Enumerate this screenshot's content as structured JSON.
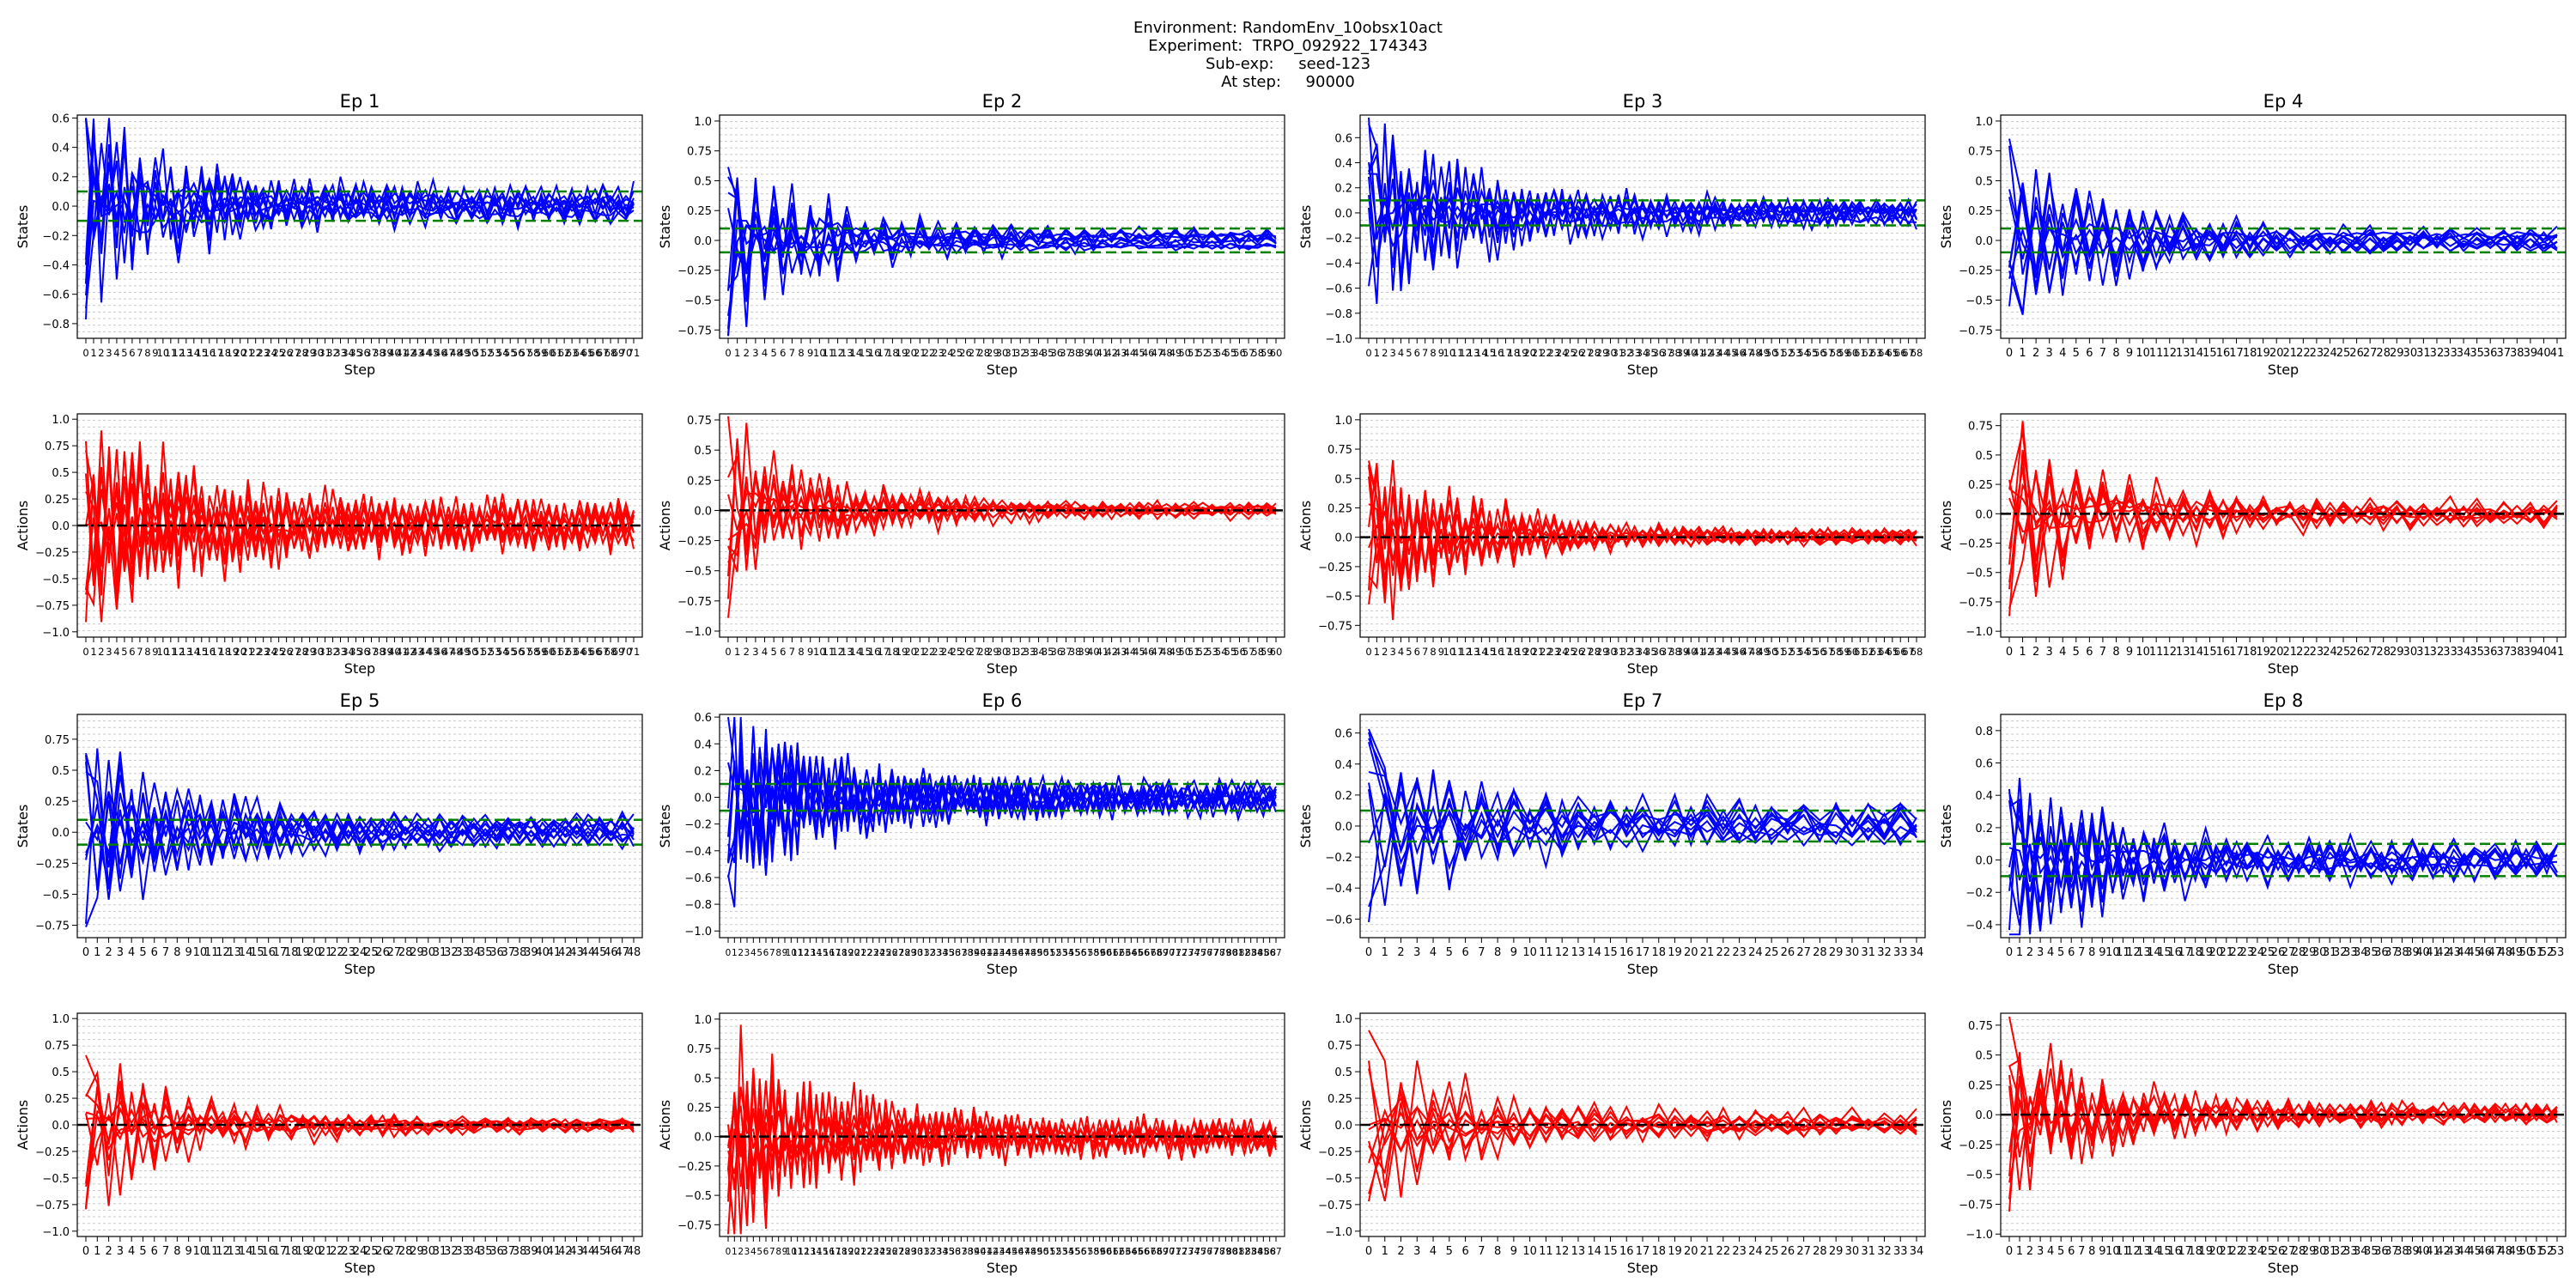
{
  "header": {
    "environment": "Environment: RandomEnv_10obsx10act",
    "experiment": "Experiment:  TRPO_092922_174343",
    "subexp": "Sub-exp:     seed-123",
    "atstep": "At step:     90000"
  },
  "colors": {
    "states": "#0000ff",
    "actions": "#ff0000",
    "threshold": "#008000",
    "zero": "#000000"
  },
  "chart_data": [
    {
      "title": "Ep 1",
      "type": "line",
      "ylabel": "States",
      "xlabel": "Step",
      "n_steps": 72,
      "n_series": 10,
      "ylim": [
        -0.9,
        0.62
      ],
      "yticks": [
        -0.8,
        -0.6,
        -0.4,
        -0.2,
        0.0,
        0.2,
        0.4,
        0.6
      ],
      "threshold": [
        0.1,
        -0.1
      ],
      "amp0": 0.85,
      "steady": 0.12
    },
    {
      "title": "Ep 2",
      "type": "line",
      "ylabel": "States",
      "xlabel": "Step",
      "n_steps": 61,
      "n_series": 10,
      "ylim": [
        -0.82,
        1.05
      ],
      "yticks": [
        -0.75,
        -0.5,
        -0.25,
        0.0,
        0.25,
        0.5,
        0.75,
        1.0
      ],
      "threshold": [
        0.1,
        -0.1
      ],
      "amp0": 0.95,
      "steady": 0.06
    },
    {
      "title": "Ep 3",
      "type": "line",
      "ylabel": "States",
      "xlabel": "Step",
      "n_steps": 69,
      "n_series": 10,
      "ylim": [
        -1.0,
        0.78
      ],
      "yticks": [
        -1.0,
        -0.8,
        -0.6,
        -0.4,
        -0.2,
        0.0,
        0.2,
        0.4,
        0.6
      ],
      "threshold": [
        0.1,
        -0.1
      ],
      "amp0": 0.9,
      "steady": 0.1
    },
    {
      "title": "Ep 4",
      "type": "line",
      "ylabel": "States",
      "xlabel": "Step",
      "n_steps": 42,
      "n_series": 10,
      "ylim": [
        -0.82,
        1.05
      ],
      "yticks": [
        -0.75,
        -0.5,
        -0.25,
        0.0,
        0.25,
        0.5,
        0.75,
        1.0
      ],
      "threshold": [
        0.1,
        -0.1
      ],
      "amp0": 0.9,
      "steady": 0.07
    },
    {
      "title": "",
      "type": "line",
      "ylabel": "Actions",
      "xlabel": "Step",
      "n_steps": 72,
      "n_series": 10,
      "ylim": [
        -1.05,
        1.05
      ],
      "yticks": [
        -1.0,
        -0.75,
        -0.5,
        -0.25,
        0.0,
        0.25,
        0.5,
        0.75,
        1.0
      ],
      "zero_line": true,
      "amp0": 1.0,
      "steady": 0.25
    },
    {
      "title": "",
      "type": "line",
      "ylabel": "Actions",
      "xlabel": "Step",
      "n_steps": 61,
      "n_series": 10,
      "ylim": [
        -1.05,
        0.8
      ],
      "yticks": [
        -1.0,
        -0.75,
        -0.5,
        -0.25,
        0.0,
        0.25,
        0.5,
        0.75
      ],
      "zero_line": true,
      "amp0": 0.95,
      "steady": 0.05
    },
    {
      "title": "",
      "type": "line",
      "ylabel": "Actions",
      "xlabel": "Step",
      "n_steps": 69,
      "n_series": 10,
      "ylim": [
        -0.85,
        1.05
      ],
      "yticks": [
        -0.75,
        -0.5,
        -0.25,
        0.0,
        0.25,
        0.5,
        0.75,
        1.0
      ],
      "zero_line": true,
      "amp0": 0.95,
      "steady": 0.05
    },
    {
      "title": "",
      "type": "line",
      "ylabel": "Actions",
      "xlabel": "Step",
      "n_steps": 42,
      "n_series": 10,
      "ylim": [
        -1.05,
        0.85
      ],
      "yticks": [
        -1.0,
        -0.75,
        -0.5,
        -0.25,
        0.0,
        0.25,
        0.5,
        0.75
      ],
      "zero_line": true,
      "amp0": 0.95,
      "steady": 0.1
    },
    {
      "title": "Ep 5",
      "type": "line",
      "ylabel": "States",
      "xlabel": "Step",
      "n_steps": 49,
      "n_series": 10,
      "ylim": [
        -0.85,
        0.95
      ],
      "yticks": [
        -0.75,
        -0.5,
        -0.25,
        0.0,
        0.25,
        0.5,
        0.75
      ],
      "threshold": [
        0.1,
        -0.1
      ],
      "amp0": 0.85,
      "steady": 0.1
    },
    {
      "title": "Ep 6",
      "type": "line",
      "ylabel": "States",
      "xlabel": "Step",
      "n_steps": 88,
      "n_series": 10,
      "ylim": [
        -1.05,
        0.62
      ],
      "yticks": [
        -1.0,
        -0.8,
        -0.6,
        -0.4,
        -0.2,
        0.0,
        0.2,
        0.4,
        0.6
      ],
      "threshold": [
        0.1,
        -0.1
      ],
      "amp0": 0.9,
      "steady": 0.12
    },
    {
      "title": "Ep 7",
      "type": "line",
      "ylabel": "States",
      "xlabel": "Step",
      "n_steps": 35,
      "n_series": 10,
      "ylim": [
        -0.72,
        0.72
      ],
      "yticks": [
        -0.6,
        -0.4,
        -0.2,
        0.0,
        0.2,
        0.4,
        0.6
      ],
      "threshold": [
        0.1,
        -0.1
      ],
      "amp0": 0.65,
      "steady": 0.12
    },
    {
      "title": "Ep 8",
      "type": "line",
      "ylabel": "States",
      "xlabel": "Step",
      "n_steps": 54,
      "n_series": 10,
      "ylim": [
        -0.48,
        0.9
      ],
      "yticks": [
        -0.4,
        -0.2,
        0.0,
        0.2,
        0.4,
        0.6,
        0.8
      ],
      "threshold": [
        0.1,
        -0.1
      ],
      "amp0": 0.7,
      "steady": 0.08
    },
    {
      "title": "",
      "type": "line",
      "ylabel": "Actions",
      "xlabel": "Step",
      "n_steps": 49,
      "n_series": 10,
      "ylim": [
        -1.05,
        1.05
      ],
      "yticks": [
        -1.0,
        -0.75,
        -0.5,
        -0.25,
        0.0,
        0.25,
        0.5,
        0.75,
        1.0
      ],
      "zero_line": true,
      "amp0": 0.95,
      "steady": 0.06
    },
    {
      "title": "",
      "type": "line",
      "ylabel": "Actions",
      "xlabel": "Step",
      "n_steps": 88,
      "n_series": 10,
      "ylim": [
        -0.85,
        1.05
      ],
      "yticks": [
        -0.75,
        -0.5,
        -0.25,
        0.0,
        0.25,
        0.5,
        0.75,
        1.0
      ],
      "zero_line": true,
      "amp0": 1.0,
      "steady": 0.15
    },
    {
      "title": "",
      "type": "line",
      "ylabel": "Actions",
      "xlabel": "Step",
      "n_steps": 35,
      "n_series": 10,
      "ylim": [
        -1.05,
        1.05
      ],
      "yticks": [
        -1.0,
        -0.75,
        -0.5,
        -0.25,
        0.0,
        0.25,
        0.5,
        0.75,
        1.0
      ],
      "zero_line": true,
      "amp0": 0.95,
      "steady": 0.12
    },
    {
      "title": "",
      "type": "line",
      "ylabel": "Actions",
      "xlabel": "Step",
      "n_steps": 54,
      "n_series": 10,
      "ylim": [
        -1.02,
        0.85
      ],
      "yticks": [
        -1.0,
        -0.75,
        -0.5,
        -0.25,
        0.0,
        0.25,
        0.5,
        0.75
      ],
      "zero_line": true,
      "amp0": 0.9,
      "steady": 0.08
    }
  ]
}
